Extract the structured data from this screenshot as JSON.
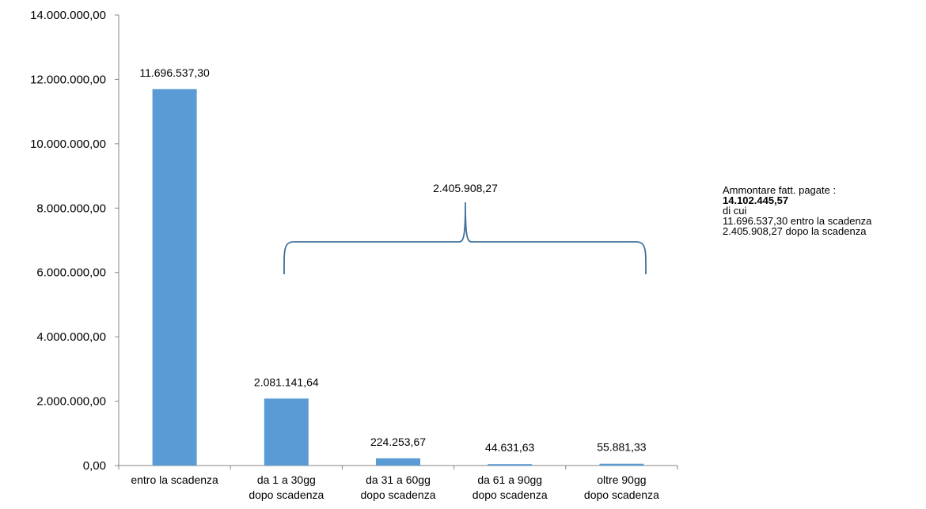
{
  "chart_data": {
    "type": "bar",
    "categories": [
      [
        "entro la scadenza"
      ],
      [
        "da 1 a 30gg",
        "dopo scadenza"
      ],
      [
        "da 31 a 60gg",
        "dopo scadenza"
      ],
      [
        "da 61 a 90gg",
        "dopo scadenza"
      ],
      [
        "oltre 90gg",
        "dopo scadenza"
      ]
    ],
    "values": [
      11696537.3,
      2081141.64,
      224253.67,
      44631.63,
      55881.33
    ],
    "data_labels": [
      "11.696.537,30",
      "2.081.141,64",
      "224.253,67",
      "44.631,63",
      "55.881,33"
    ],
    "ylim": [
      0,
      14000000
    ],
    "yticks": [
      0,
      2000000,
      4000000,
      6000000,
      8000000,
      10000000,
      12000000,
      14000000
    ],
    "ytick_labels": [
      "0,00",
      "2.000.000,00",
      "4.000.000,00",
      "6.000.000,00",
      "8.000.000,00",
      "10.000.000,00",
      "12.000.000,00",
      "14.000.000,00"
    ],
    "bar_color": "#5b9bd5",
    "grid": false,
    "legend": "none",
    "annotations": [
      {
        "type": "brace",
        "spans_categories": [
          1,
          4
        ],
        "label": "2.405.908,27",
        "color": "#41719c"
      }
    ]
  },
  "note": {
    "line1": "Ammontare fatt. pagate :",
    "line2": "14.102.445,57",
    "line3": "di cui",
    "line4": "11.696.537,30  entro la scadenza",
    "line5": "2.405.908,27  dopo la scadenza"
  }
}
